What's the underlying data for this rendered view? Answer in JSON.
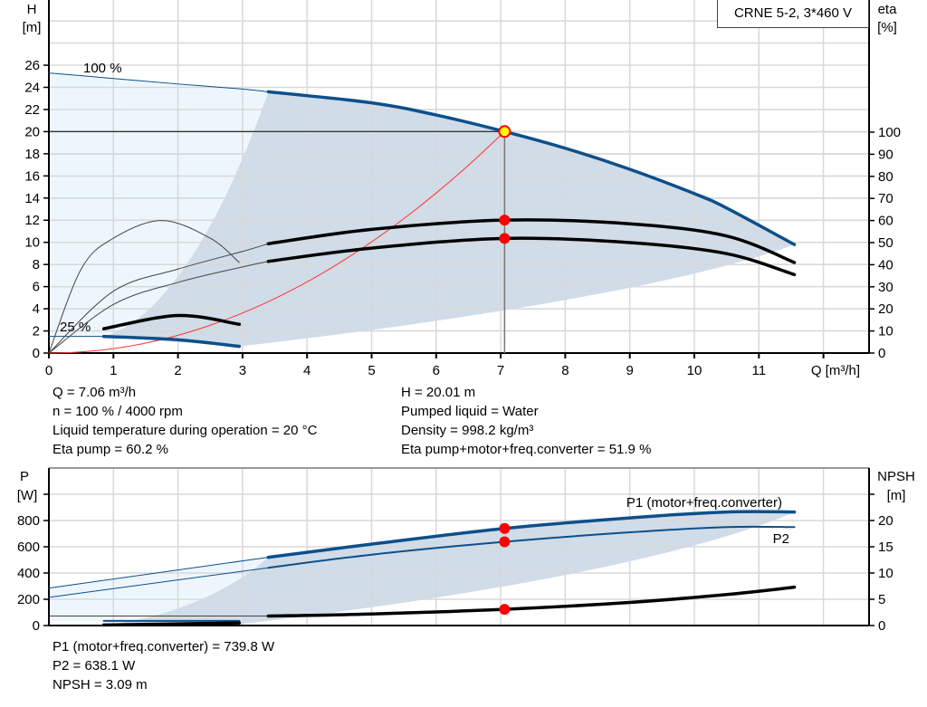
{
  "title_box": "CRNE 5-2, 3*460 V",
  "colors": {
    "pump_curve": "#0d4f8b",
    "efficiency": "#000000",
    "system_curve": "#ff3333",
    "operating_point": "#ff0000",
    "operating_point_main": "#ffff00",
    "envelope_light": "#eef6fd",
    "envelope_dark": "#d0dce8",
    "grid": "#d8d8d8"
  },
  "chart_data": [
    {
      "type": "line",
      "title": "",
      "xlabel": "Q [m³/h]",
      "ylabel_left": "H",
      "ylabel_left_unit": "[m]",
      "ylabel_right": "eta",
      "ylabel_right_unit": "[%]",
      "xlim": [
        0,
        12.8
      ],
      "ylim_left": [
        0,
        30
      ],
      "ylim_right": [
        0,
        100
      ],
      "xticks": [
        "0",
        "1",
        "2",
        "3",
        "4",
        "5",
        "6",
        "7",
        "8",
        "9",
        "10",
        "11"
      ],
      "yticks_left": [
        "0",
        "2",
        "4",
        "6",
        "8",
        "10",
        "12",
        "14",
        "16",
        "18",
        "20",
        "22",
        "24",
        "26"
      ],
      "yticks_right": [
        "0",
        "10",
        "20",
        "30",
        "40",
        "50",
        "60",
        "70",
        "80",
        "90",
        "100"
      ],
      "grid": true,
      "annotations": [
        "100 %",
        "25 %"
      ],
      "series": [
        {
          "id": "head_100",
          "axis": "left",
          "x": [
            0,
            1,
            2,
            3,
            3.4
          ],
          "y": [
            25.3,
            24.8,
            24.3,
            23.85,
            23.6
          ],
          "style": "thin"
        },
        {
          "id": "head_100_op",
          "axis": "left",
          "x": [
            3.4,
            5,
            6,
            7.06,
            8,
            9,
            10,
            10.5,
            11.55
          ],
          "y": [
            23.6,
            22.6,
            21.5,
            20.01,
            18.5,
            16.6,
            14.4,
            13.1,
            9.8
          ],
          "style": "thick"
        },
        {
          "id": "head_25",
          "axis": "left",
          "x": [
            0,
            0.85
          ],
          "y": [
            1.5,
            1.5
          ],
          "style": "thin"
        },
        {
          "id": "head_25_op",
          "axis": "left",
          "x": [
            0.85,
            2,
            2.95
          ],
          "y": [
            1.5,
            1.2,
            0.6
          ],
          "style": "thick"
        },
        {
          "id": "eta_pump_thin",
          "axis": "right",
          "x": [
            0,
            1,
            2,
            3,
            3.4
          ],
          "y": [
            0,
            28,
            38,
            46,
            49.5
          ],
          "style": "thin"
        },
        {
          "id": "eta_pump",
          "axis": "right",
          "x": [
            3.4,
            5,
            7.06,
            9,
            10.5,
            11.55
          ],
          "y": [
            49.5,
            56,
            60.2,
            58.5,
            53,
            41
          ],
          "style": "thick"
        },
        {
          "id": "eta_total_thin",
          "axis": "right",
          "x": [
            0,
            1,
            2,
            3,
            3.4
          ],
          "y": [
            0,
            22,
            32,
            39,
            41.5
          ],
          "style": "thin"
        },
        {
          "id": "eta_total",
          "axis": "right",
          "x": [
            3.4,
            5,
            7.06,
            9,
            10.5,
            11.55
          ],
          "y": [
            41.5,
            47.5,
            51.9,
            50,
            45,
            35.5
          ],
          "style": "thick"
        },
        {
          "id": "eta_25_thin",
          "axis": "right",
          "x": [
            0,
            0.5,
            1,
            1.75,
            2.5,
            2.95
          ],
          "y": [
            0,
            38,
            52,
            60,
            52,
            41
          ],
          "style": "thin"
        },
        {
          "id": "eta_25",
          "axis": "right",
          "x": [
            0.85,
            2,
            2.95
          ],
          "y": [
            11,
            17,
            13
          ],
          "style": "thick"
        }
      ],
      "operating_point": {
        "q": 7.06,
        "h": 20.01,
        "eta_pump": 60.2,
        "eta_total": 51.9
      }
    },
    {
      "type": "line",
      "title": "",
      "ylabel_left": "P",
      "ylabel_left_unit": "[W]",
      "ylabel_right": "NPSH",
      "ylabel_right_unit": "[m]",
      "xlim": [
        0,
        12.8
      ],
      "ylim_left": [
        0,
        1000
      ],
      "ylim_right": [
        0,
        25
      ],
      "yticks_left": [
        "0",
        "200",
        "400",
        "600",
        "800"
      ],
      "yticks_right": [
        "0",
        "5",
        "10",
        "15",
        "20"
      ],
      "grid": true,
      "series": [
        {
          "id": "p1_thin",
          "name": "P1 (motor+freq.converter)",
          "axis": "left",
          "x": [
            0,
            3.4
          ],
          "y": [
            285,
            520
          ],
          "style": "thin"
        },
        {
          "id": "p1",
          "name": "P1 (motor+freq.converter)",
          "axis": "left",
          "x": [
            3.4,
            5,
            7.06,
            9,
            10.5,
            11.55
          ],
          "y": [
            520,
            620,
            739.8,
            820,
            865,
            865
          ],
          "style": "thick"
        },
        {
          "id": "p2_thin",
          "name": "P2",
          "axis": "left",
          "x": [
            0,
            3.4
          ],
          "y": [
            215,
            440
          ],
          "style": "thin"
        },
        {
          "id": "p2",
          "name": "P2",
          "axis": "left",
          "x": [
            3.4,
            5,
            7.06,
            9,
            10.5,
            11.55
          ],
          "y": [
            440,
            540,
            638.1,
            710,
            750,
            750
          ],
          "style": "medium"
        },
        {
          "id": "npsh_thin",
          "axis": "right",
          "x": [
            0,
            3.4
          ],
          "y": [
            1.8,
            1.8
          ],
          "style": "thin"
        },
        {
          "id": "npsh",
          "axis": "right",
          "x": [
            3.4,
            5,
            7.06,
            9,
            10.5,
            11.55
          ],
          "y": [
            1.8,
            2.2,
            3.09,
            4.4,
            5.9,
            7.3
          ],
          "style": "thick"
        },
        {
          "id": "p_25",
          "axis": "left",
          "x": [
            0.85,
            2.95
          ],
          "y": [
            35,
            35
          ],
          "style": "medium"
        },
        {
          "id": "npsh_25",
          "axis": "right",
          "x": [
            0.85,
            2.95
          ],
          "y": [
            0.1,
            0.5
          ],
          "style": "thick"
        }
      ]
    }
  ],
  "info_top": {
    "left": [
      "Q = 7.06 m³/h",
      "n = 100 % / 4000 rpm",
      "Liquid temperature during operation = 20 °C",
      "Eta pump = 60.2 %"
    ],
    "right": [
      "H = 20.01 m",
      "Pumped liquid = Water",
      "Density = 998.2 kg/m³",
      "Eta pump+motor+freq.converter = 51.9 %"
    ]
  },
  "info_bottom": [
    "P1 (motor+freq.converter) = 739.8 W",
    "P2 = 638.1 W",
    "NPSH = 3.09 m"
  ]
}
